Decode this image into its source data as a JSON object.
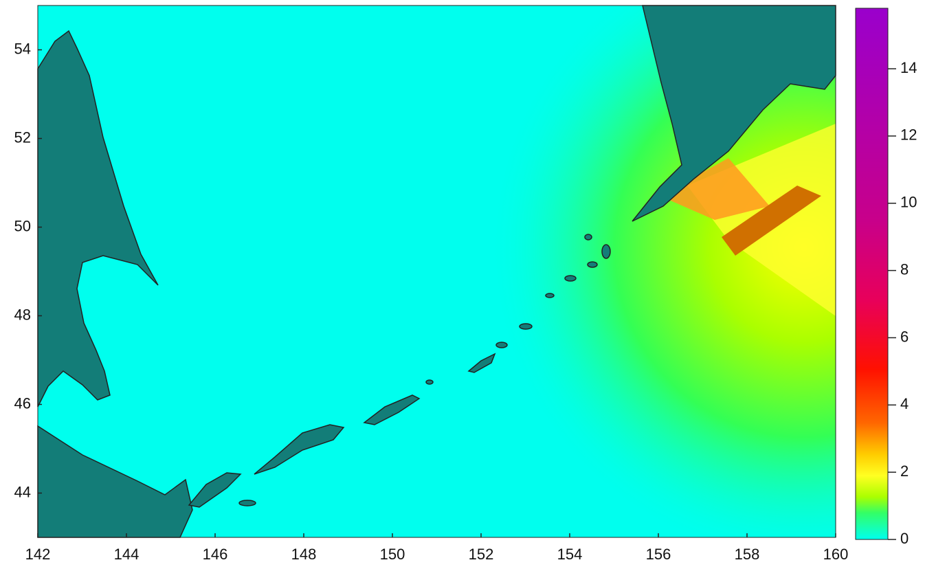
{
  "map": {
    "xlim": [
      142,
      160
    ],
    "ylim": [
      43,
      55
    ],
    "xticks": [
      142,
      144,
      146,
      148,
      150,
      152,
      154,
      156,
      158,
      160
    ],
    "yticks": [
      44,
      46,
      48,
      50,
      52,
      54
    ],
    "colorbar": {
      "lim": [
        0,
        15.8
      ],
      "ticks": [
        0,
        2,
        4,
        6,
        8,
        10,
        12,
        14
      ]
    }
  }
}
